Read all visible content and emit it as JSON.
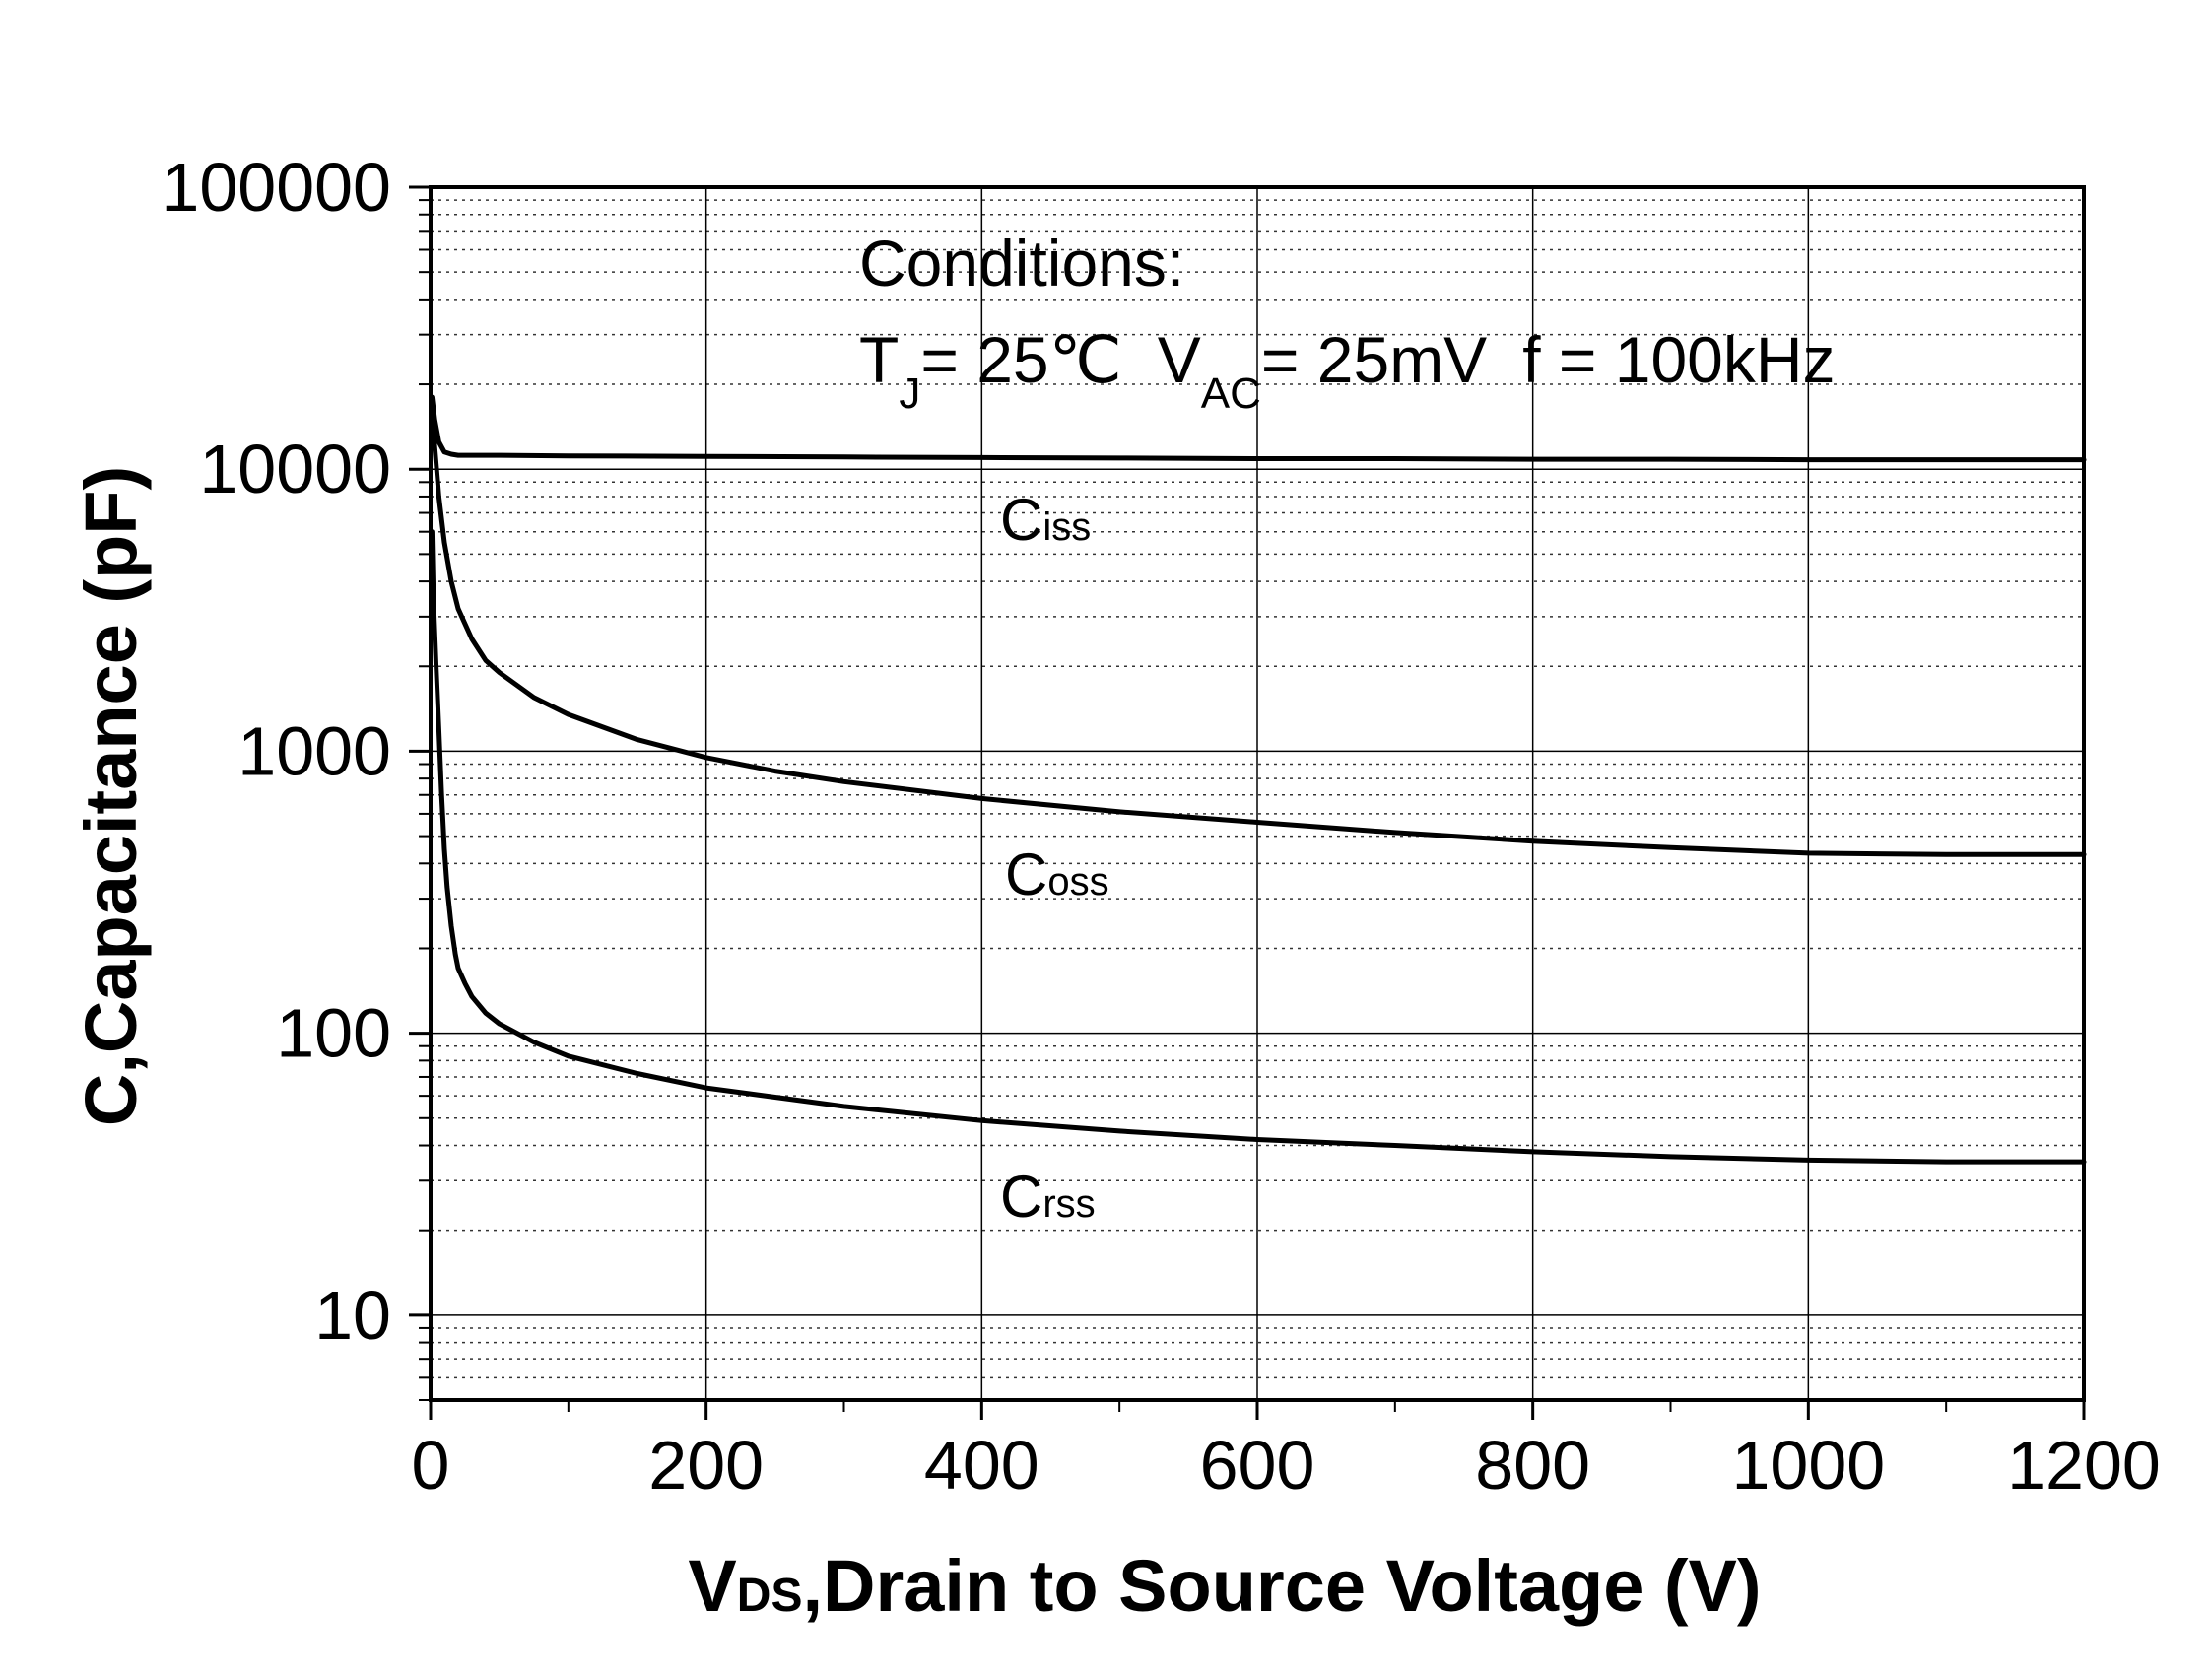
{
  "chart_data": {
    "type": "line",
    "title": "",
    "xlabel": {
      "main": "V",
      "sub": "DS",
      "rest": ",Drain to Source Voltage (V)"
    },
    "ylabel": "C,Capacitance (pF)",
    "xlim": [
      0,
      1200
    ],
    "ylim": [
      5,
      100000
    ],
    "yscale": "log",
    "x_ticks": [
      0,
      200,
      400,
      600,
      800,
      1000,
      1200
    ],
    "x_tick_labels": [
      "0",
      "200",
      "400",
      "600",
      "800",
      "1000",
      "1200"
    ],
    "y_ticks": [
      10,
      100,
      1000,
      10000,
      100000
    ],
    "y_tick_labels": [
      "10",
      "100",
      "1000",
      "10000",
      "100000"
    ],
    "grid": true,
    "conditions": {
      "title": "Conditions:",
      "tj_label": "T",
      "tj_sub": "J",
      "tj_value": "= 25℃",
      "vac_label": "V",
      "vac_sub": "AC",
      "vac_value": "= 25mV",
      "freq": "f = 100kHz"
    },
    "series": [
      {
        "name": "Ciss",
        "label_main": "C",
        "label_sub": "iss",
        "x": [
          1,
          3,
          6,
          10,
          15,
          20,
          30,
          50,
          100,
          200,
          300,
          400,
          500,
          600,
          700,
          800,
          900,
          1000,
          1100,
          1200
        ],
        "values": [
          18000,
          15000,
          12500,
          11500,
          11300,
          11200,
          11200,
          11200,
          11150,
          11100,
          11050,
          11000,
          10950,
          10900,
          10900,
          10850,
          10850,
          10800,
          10800,
          10800
        ]
      },
      {
        "name": "Coss",
        "label_main": "C",
        "label_sub": "oss",
        "x": [
          1,
          3,
          6,
          10,
          15,
          20,
          30,
          40,
          50,
          75,
          100,
          150,
          200,
          250,
          300,
          400,
          500,
          600,
          700,
          800,
          900,
          1000,
          1100,
          1200
        ],
        "values": [
          17000,
          12000,
          8000,
          5500,
          4000,
          3200,
          2500,
          2100,
          1900,
          1550,
          1350,
          1100,
          950,
          850,
          780,
          680,
          610,
          560,
          515,
          480,
          455,
          435,
          430,
          430
        ]
      },
      {
        "name": "Crss",
        "label_main": "C",
        "label_sub": "rss",
        "x": [
          1,
          2,
          4,
          6,
          8,
          10,
          12,
          15,
          18,
          20,
          25,
          30,
          40,
          50,
          75,
          100,
          150,
          200,
          300,
          400,
          500,
          600,
          700,
          800,
          900,
          1000,
          1100,
          1200
        ],
        "values": [
          6000,
          3500,
          2000,
          1200,
          700,
          450,
          330,
          240,
          190,
          170,
          150,
          135,
          118,
          108,
          93,
          83,
          72,
          64,
          55,
          49,
          45,
          42,
          40,
          38,
          36.5,
          35.5,
          35,
          35
        ]
      }
    ]
  }
}
